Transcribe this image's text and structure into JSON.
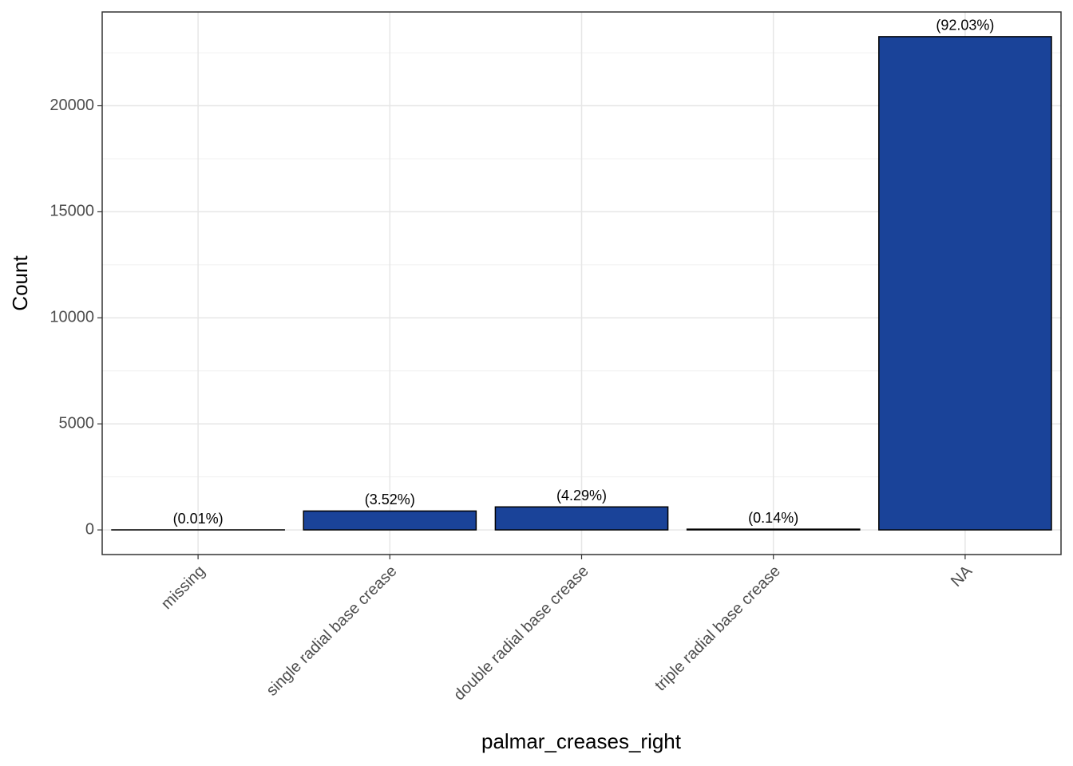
{
  "chart_data": {
    "type": "bar",
    "x_label": "palmar_creases_right",
    "y_label": "Count",
    "categories": [
      "missing",
      "single radial base crease",
      "double radial base crease",
      "triple radial base crease",
      "NA"
    ],
    "values": [
      3,
      890,
      1084,
      35,
      23260
    ],
    "bar_labels": [
      "(0.01%)",
      "(3.52%)",
      "(4.29%)",
      "(0.14%)",
      "(92.03%)"
    ],
    "color": "#1a4399",
    "ylim": [
      -1163,
      24423
    ],
    "yticks": [
      0,
      5000,
      10000,
      15000,
      20000
    ],
    "y_minor_grid": [
      2500,
      7500,
      12500,
      17500,
      22500
    ],
    "grid": true
  }
}
